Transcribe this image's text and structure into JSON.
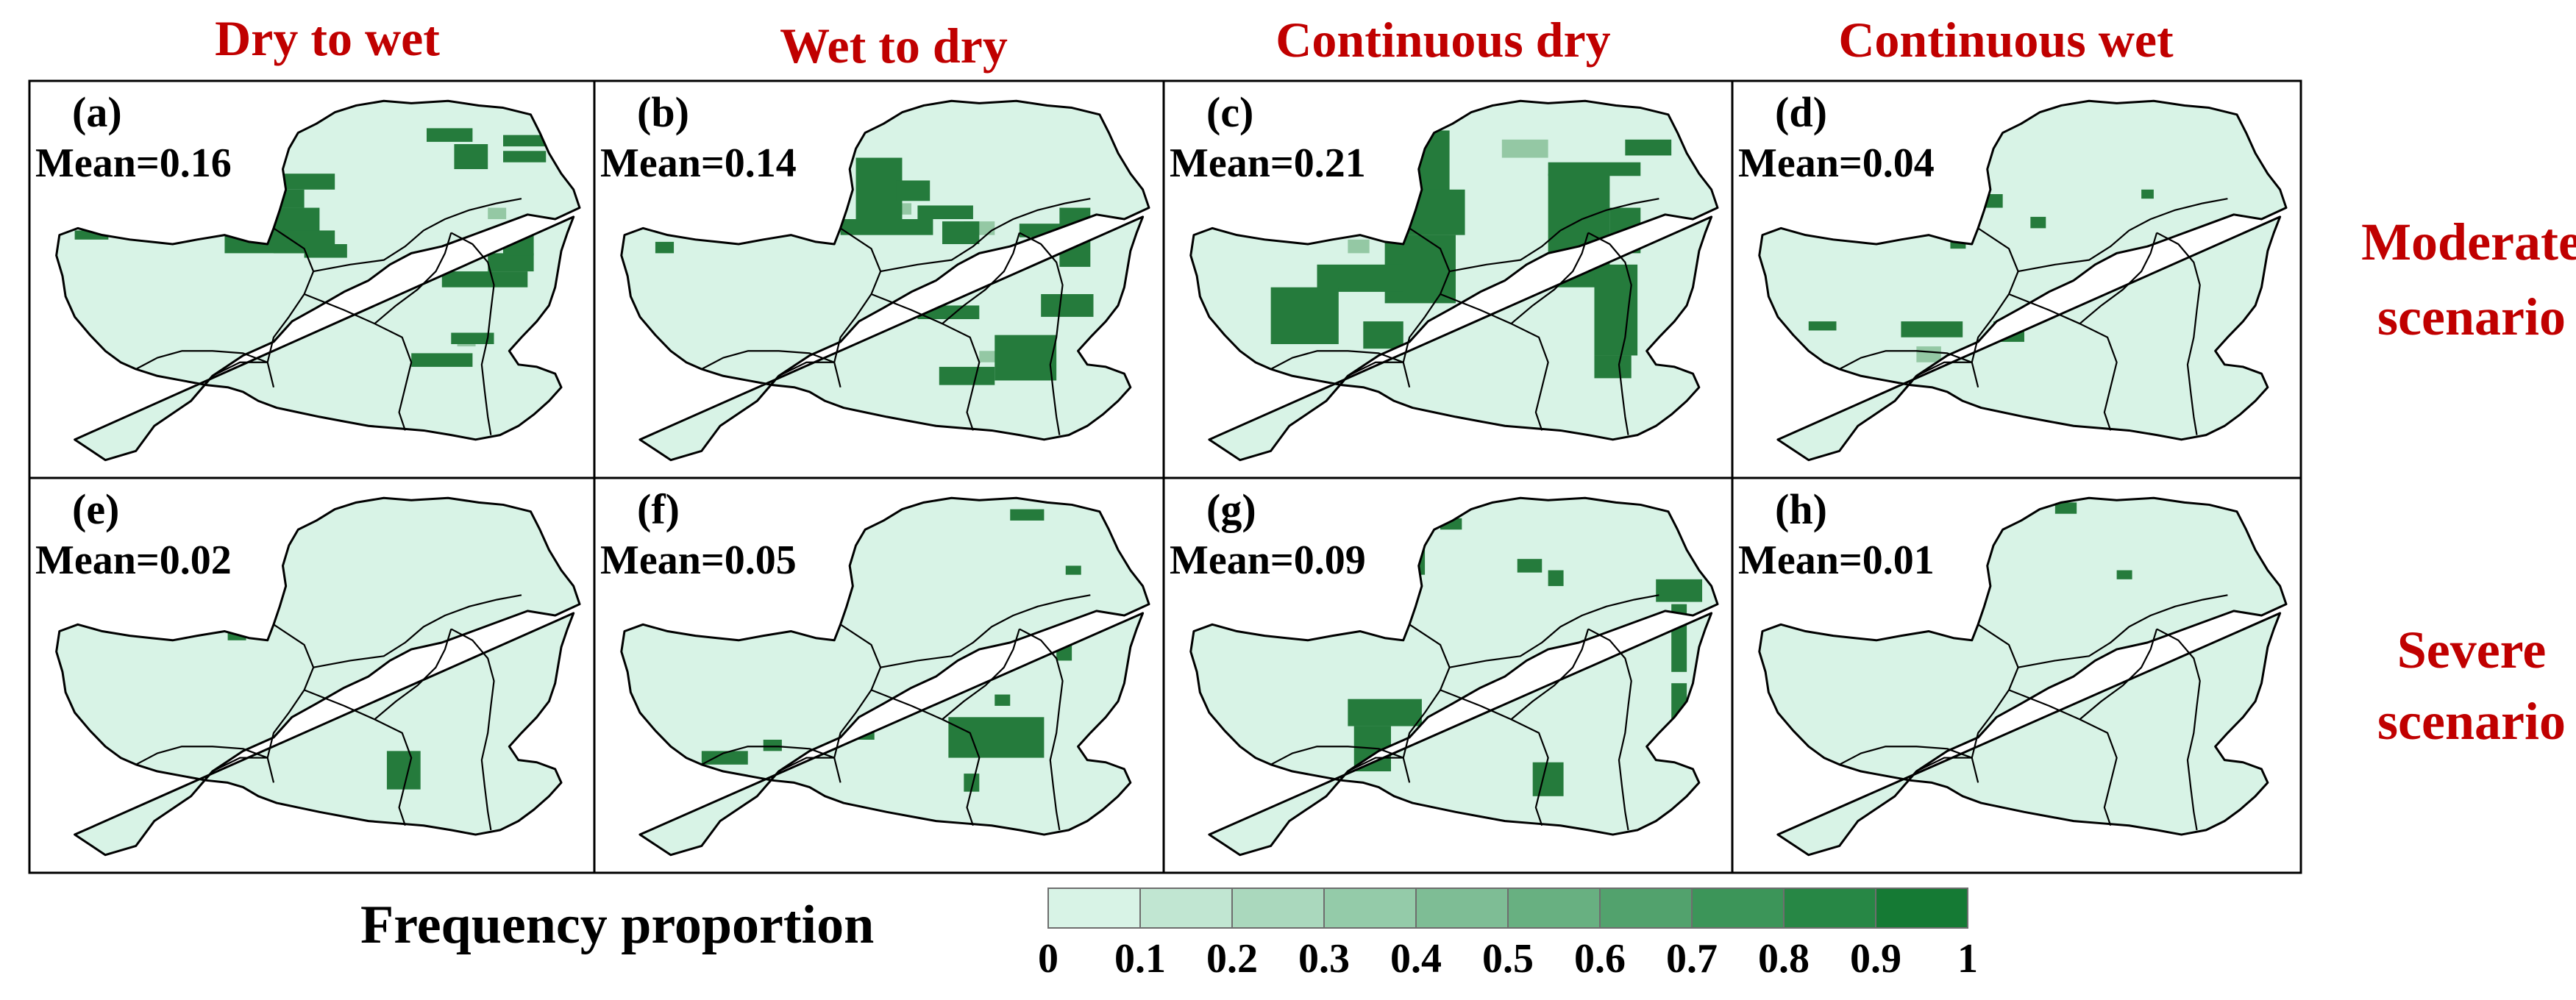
{
  "columns": [
    {
      "title": "Dry to wet"
    },
    {
      "title": "Wet to dry"
    },
    {
      "title": "Continuous dry"
    },
    {
      "title": "Continuous wet"
    }
  ],
  "rows": [
    {
      "label_line1": "Moderate",
      "label_line2": "scenario"
    },
    {
      "label_line1": "Severe",
      "label_line2": "scenario"
    }
  ],
  "panels": [
    {
      "letter": "(a)",
      "mean": "Mean=0.16",
      "value": 0.16
    },
    {
      "letter": "(b)",
      "mean": "Mean=0.14",
      "value": 0.14
    },
    {
      "letter": "(c)",
      "mean": "Mean=0.21",
      "value": 0.21
    },
    {
      "letter": "(d)",
      "mean": "Mean=0.04",
      "value": 0.04
    },
    {
      "letter": "(e)",
      "mean": "Mean=0.02",
      "value": 0.02
    },
    {
      "letter": "(f)",
      "mean": "Mean=0.05",
      "value": 0.05
    },
    {
      "letter": "(g)",
      "mean": "Mean=0.09",
      "value": 0.09
    },
    {
      "letter": "(h)",
      "mean": "Mean=0.01",
      "value": 0.01
    }
  ],
  "legend": {
    "title": "Frequency proportion",
    "ticks": [
      "0",
      "0.1",
      "0.2",
      "0.3",
      "0.4",
      "0.5",
      "0.6",
      "0.7",
      "0.8",
      "0.9",
      "1"
    ],
    "colors": [
      "#d8f3e6",
      "#c1e6d2",
      "#aad8bd",
      "#94cba9",
      "#7ebd95",
      "#68b081",
      "#52a26d",
      "#3c9559",
      "#278745",
      "#157a34"
    ]
  },
  "colors": {
    "title": "#c00000",
    "base": "#d8f3e6",
    "dark": "#257b3c",
    "mid": "#94c8a4"
  }
}
